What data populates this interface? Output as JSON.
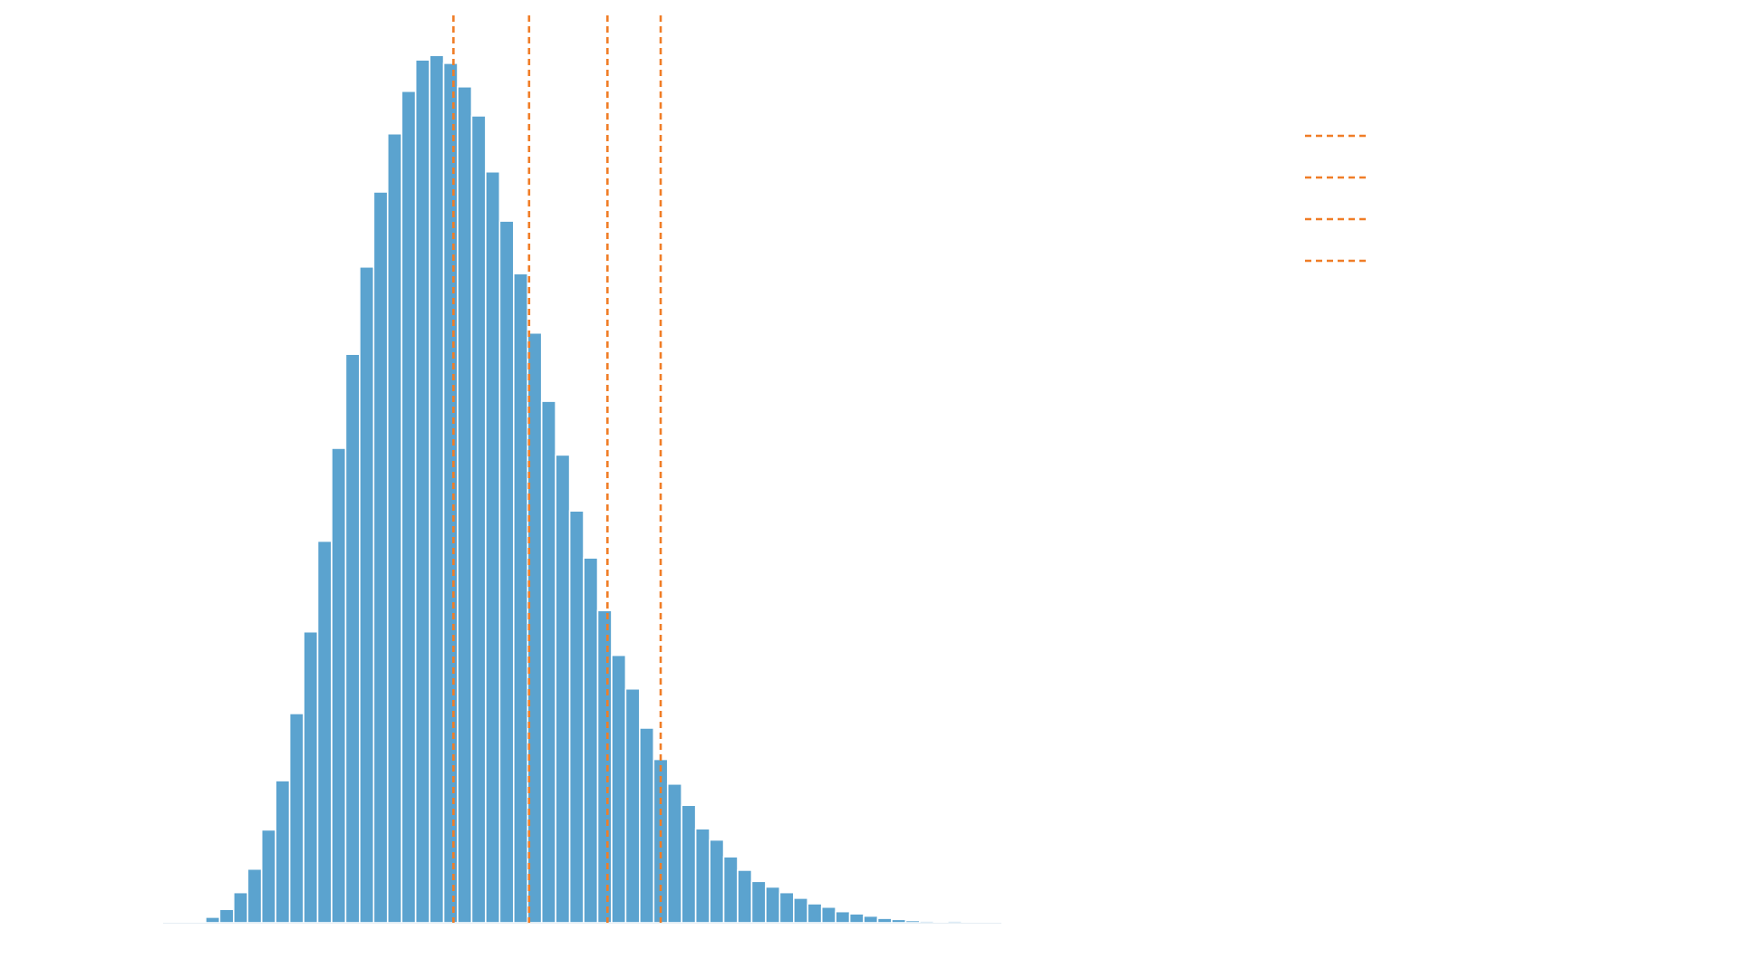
{
  "chart_data": {
    "type": "bar",
    "title": "",
    "xlabel": "",
    "ylabel": "",
    "bar_color": "#5ba3cf",
    "bar_edge_color": "#ffffff",
    "marker_color": "#f07d27",
    "marker_style": "dashed",
    "grid": false,
    "legend_location": "top-right",
    "bin_count": 60,
    "ylim": [
      0,
      780
    ],
    "values": [
      0,
      1,
      5,
      12,
      27,
      48,
      83,
      127,
      187,
      260,
      341,
      424,
      508,
      586,
      653,
      705,
      743,
      771,
      775,
      768,
      747,
      721,
      671,
      627,
      580,
      527,
      466,
      418,
      368,
      326,
      279,
      239,
      209,
      174,
      146,
      124,
      105,
      84,
      74,
      59,
      47,
      37,
      32,
      27,
      22,
      17,
      14,
      10,
      8,
      6,
      4,
      3,
      2,
      1.5,
      1,
      1.5,
      0.6,
      0.3,
      0.3,
      0.2
    ],
    "markers": [
      {
        "bin_position": 19.7
      },
      {
        "bin_position": 25.1
      },
      {
        "bin_position": 30.7
      },
      {
        "bin_position": 34.5
      }
    ]
  }
}
